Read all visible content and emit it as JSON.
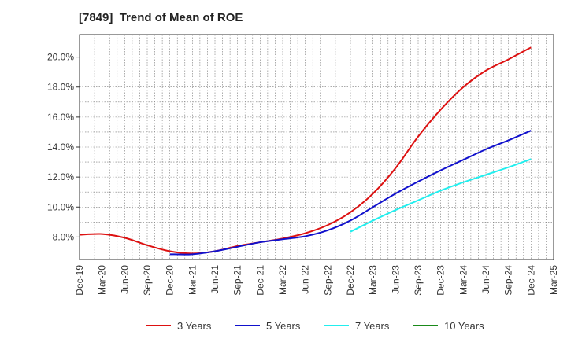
{
  "chart_data": {
    "type": "line",
    "title": "[7849]  Trend of Mean of ROE",
    "xlabel": "",
    "ylabel": "",
    "x_ticks": [
      "Dec-19",
      "Mar-20",
      "Jun-20",
      "Sep-20",
      "Dec-20",
      "Mar-21",
      "Jun-21",
      "Sep-21",
      "Dec-21",
      "Mar-22",
      "Jun-22",
      "Sep-22",
      "Dec-22",
      "Mar-23",
      "Jun-23",
      "Sep-23",
      "Dec-23",
      "Mar-24",
      "Jun-24",
      "Sep-24",
      "Dec-24",
      "Mar-25"
    ],
    "y_ticks": [
      "8.0%",
      "10.0%",
      "12.0%",
      "14.0%",
      "16.0%",
      "18.0%",
      "20.0%"
    ],
    "ylim": [
      6.5,
      21.5
    ],
    "grid": true,
    "legend_position": "bottom",
    "series": [
      {
        "name": "3 Years",
        "color": "#dd1111",
        "x": [
          "Dec-19",
          "Mar-20",
          "Jun-20",
          "Sep-20",
          "Dec-20",
          "Mar-21",
          "Jun-21",
          "Sep-21",
          "Dec-21",
          "Mar-22",
          "Jun-22",
          "Sep-22",
          "Dec-22",
          "Mar-23",
          "Jun-23",
          "Sep-23",
          "Dec-23",
          "Mar-24",
          "Jun-24",
          "Sep-24",
          "Dec-24"
        ],
        "values": [
          8.15,
          8.2,
          7.95,
          7.45,
          7.05,
          6.9,
          7.05,
          7.4,
          7.65,
          7.9,
          8.25,
          8.8,
          9.65,
          10.9,
          12.6,
          14.7,
          16.5,
          18.0,
          19.1,
          19.85,
          20.65
        ]
      },
      {
        "name": "5 Years",
        "color": "#1111cc",
        "x": [
          "Dec-20",
          "Mar-21",
          "Jun-21",
          "Sep-21",
          "Dec-21",
          "Mar-22",
          "Jun-22",
          "Sep-22",
          "Dec-22",
          "Mar-23",
          "Jun-23",
          "Sep-23",
          "Dec-23",
          "Mar-24",
          "Jun-24",
          "Sep-24",
          "Dec-24"
        ],
        "values": [
          6.85,
          6.85,
          7.05,
          7.35,
          7.65,
          7.85,
          8.05,
          8.45,
          9.1,
          10.0,
          10.9,
          11.7,
          12.45,
          13.15,
          13.85,
          14.45,
          15.1
        ]
      },
      {
        "name": "7 Years",
        "color": "#22eeee",
        "x": [
          "Dec-22",
          "Mar-23",
          "Jun-23",
          "Sep-23",
          "Dec-23",
          "Mar-24",
          "Jun-24",
          "Sep-24",
          "Dec-24"
        ],
        "values": [
          8.35,
          9.1,
          9.8,
          10.45,
          11.1,
          11.65,
          12.15,
          12.65,
          13.2
        ]
      },
      {
        "name": "10 Years",
        "color": "#1a8a1a",
        "x": [],
        "values": []
      }
    ]
  }
}
